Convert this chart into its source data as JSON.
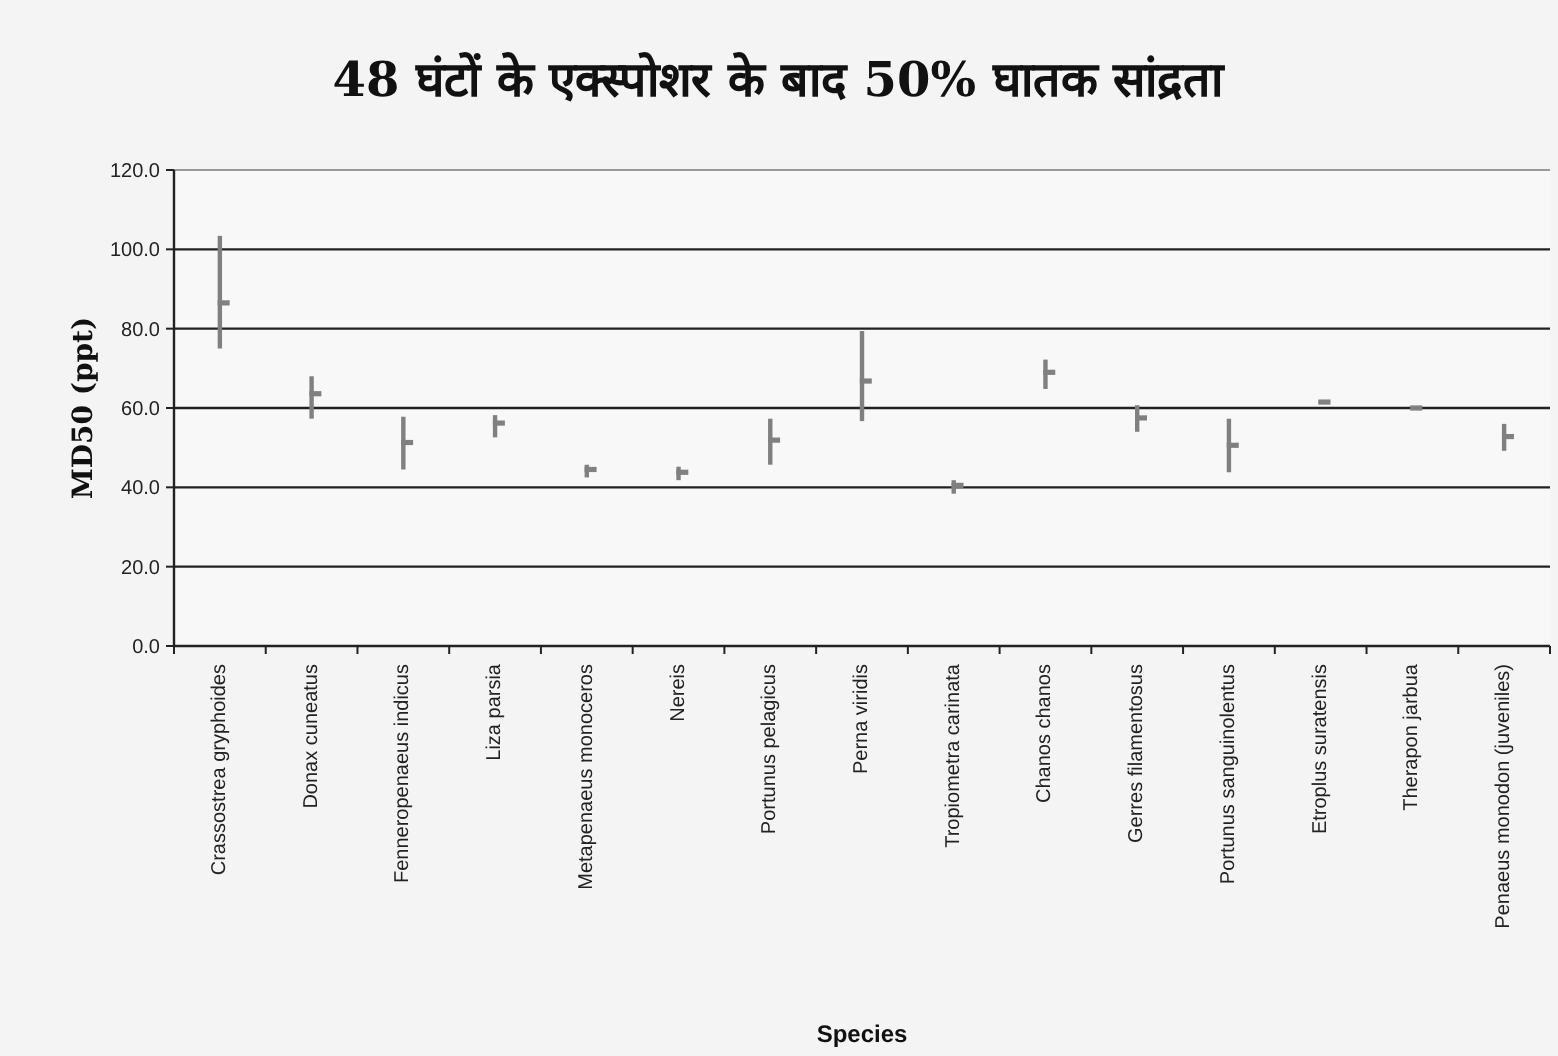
{
  "chart_data": {
    "type": "scatter",
    "title": "48 घंटों के एक्स्पोशर के बाद 50% घातक सांद्रता",
    "xlabel": "Species",
    "ylabel": "MD50 (ppt)",
    "categories": [
      "Crassostrea gryphoides",
      "Donax cuneatus",
      "Fenneropenaeus indicus",
      "Liza parsia",
      "Metapenaeus monoceros",
      "Nereis",
      "Portunus pelagicus",
      "Perna viridis",
      "Tropiometra carinata",
      "Chanos chanos",
      "Gerres filamentosus",
      "Portunus sanguinolentus",
      "Etroplus suratensis",
      "Therapon jarbua",
      "Penaeus monodon (juveniles)"
    ],
    "values": [
      86.5,
      63.6,
      51.3,
      56.2,
      44.5,
      43.8,
      51.9,
      66.8,
      40.5,
      69.0,
      57.5,
      50.6,
      61.5,
      60.0,
      52.8
    ],
    "errors": [
      [
        75.0,
        103.4
      ],
      [
        57.3,
        68.0
      ],
      [
        44.5,
        57.8
      ],
      [
        52.6,
        58.2
      ],
      [
        42.5,
        45.7
      ],
      [
        41.8,
        45.2
      ],
      [
        45.7,
        57.3
      ],
      [
        56.7,
        79.4
      ],
      [
        38.4,
        41.8
      ],
      [
        64.8,
        72.2
      ],
      [
        54.0,
        60.7
      ],
      [
        43.8,
        57.3
      ],
      [
        61.0,
        62.0
      ],
      [
        59.7,
        60.4
      ],
      [
        49.2,
        56.0
      ]
    ],
    "color": "#808080",
    "ylim": [
      0,
      120
    ],
    "yticks": [
      {
        "value": 0,
        "label": "0.0"
      },
      {
        "value": 20,
        "label": "20.0"
      },
      {
        "value": 40,
        "label": "40.0"
      },
      {
        "value": 60,
        "label": "60.0"
      },
      {
        "value": 80,
        "label": "80.0"
      },
      {
        "value": 100,
        "label": "100.0"
      },
      {
        "value": 120,
        "label": "120.0"
      }
    ],
    "grid": "y"
  }
}
